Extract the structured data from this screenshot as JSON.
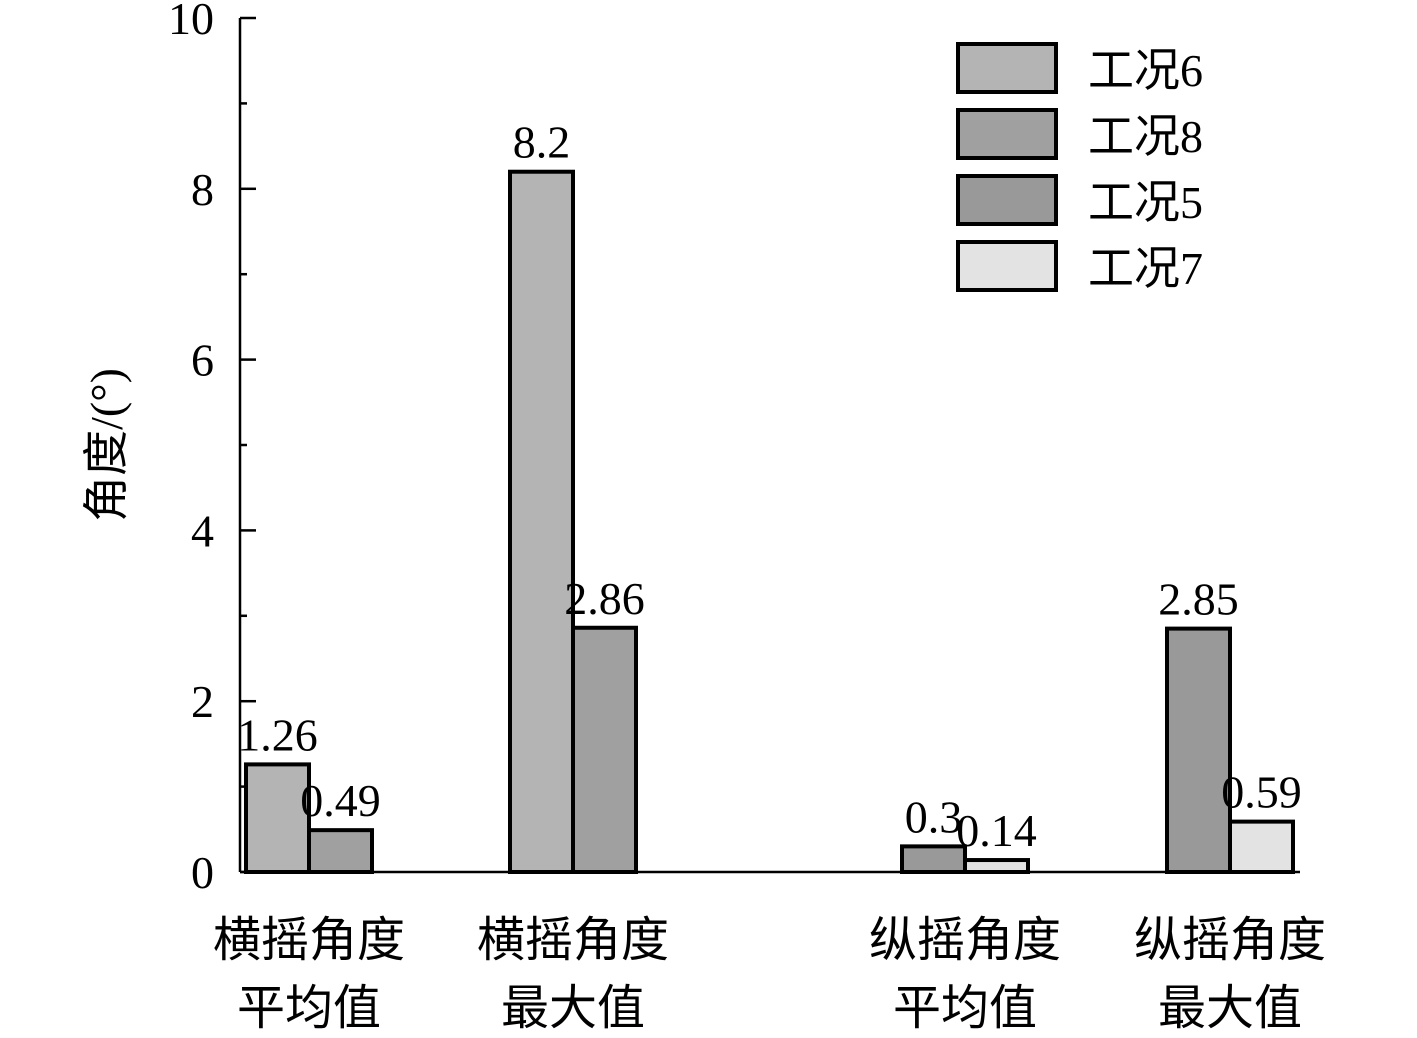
{
  "chart_data": {
    "type": "bar",
    "ylabel": "角度/(°)",
    "xlabel": "",
    "ylim": [
      0,
      10
    ],
    "yticks": [
      0,
      2,
      4,
      6,
      8,
      10
    ],
    "grid": false,
    "legend_position": "top-right",
    "categories": [
      [
        "横摇角度",
        "平均值"
      ],
      [
        "横摇角度",
        "最大值"
      ],
      [
        "纵摇角度",
        "平均值"
      ],
      [
        "纵摇角度",
        "最大值"
      ]
    ],
    "series": [
      {
        "name": "工况6",
        "color": "#b4b4b4",
        "values": [
          1.26,
          8.2,
          null,
          null
        ]
      },
      {
        "name": "工况8",
        "color": "#a0a0a0",
        "values": [
          0.49,
          2.86,
          null,
          null
        ]
      },
      {
        "name": "工况5",
        "color": "#999999",
        "values": [
          null,
          null,
          0.3,
          2.85
        ]
      },
      {
        "name": "工况7",
        "color": "#e3e3e3",
        "values": [
          null,
          null,
          0.14,
          0.59
        ]
      }
    ],
    "bars": [
      {
        "category": 0,
        "series": 0,
        "value": 1.26,
        "label": "1.26"
      },
      {
        "category": 0,
        "series": 1,
        "value": 0.49,
        "label": "0.49"
      },
      {
        "category": 1,
        "series": 0,
        "value": 8.2,
        "label": "8.2"
      },
      {
        "category": 1,
        "series": 1,
        "value": 2.86,
        "label": "2.86"
      },
      {
        "category": 2,
        "series": 2,
        "value": 0.3,
        "label": "0.3"
      },
      {
        "category": 2,
        "series": 3,
        "value": 0.14,
        "label": "0.14"
      },
      {
        "category": 3,
        "series": 2,
        "value": 2.85,
        "label": "2.85"
      },
      {
        "category": 3,
        "series": 3,
        "value": 0.59,
        "label": "0.59"
      }
    ]
  }
}
